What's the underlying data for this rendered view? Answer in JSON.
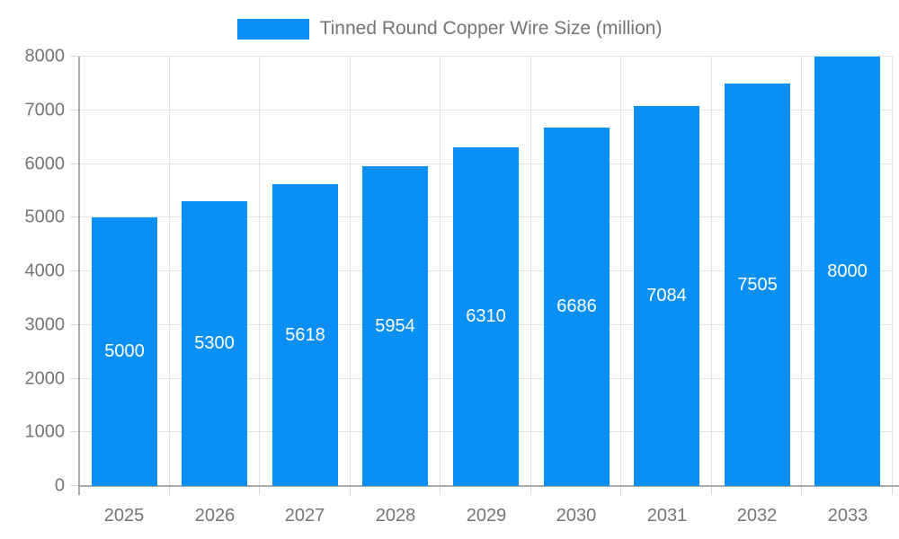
{
  "chart_data": {
    "type": "bar",
    "legend": "Tinned Round Copper Wire Size (million)",
    "legend_position": "top",
    "categories": [
      "2025",
      "2026",
      "2027",
      "2028",
      "2029",
      "2030",
      "2031",
      "2032",
      "2033"
    ],
    "values": [
      5000,
      5300,
      5618,
      5954,
      6310,
      6686,
      7084,
      7505,
      8000
    ],
    "bar_labels": [
      "5000",
      "5300",
      "5618",
      "5954",
      "6310",
      "6686",
      "7084",
      "7505",
      "8000"
    ],
    "xlabel": "",
    "ylabel": "",
    "ylim": [
      0,
      8000
    ],
    "ytick_step": 1000,
    "ytick_labels": [
      "0",
      "1000",
      "2000",
      "3000",
      "4000",
      "5000",
      "6000",
      "7000",
      "8000"
    ],
    "grid": "on",
    "colors": {
      "bar": "#0a8ff5",
      "grid": "#e3e3e3",
      "tick": "#d6d6d6",
      "axis": "#aaaaaa",
      "axis_text": "#757575",
      "bar_label_text": "#ffffff",
      "legend_text": "#757575",
      "background": "#ffffff"
    }
  }
}
